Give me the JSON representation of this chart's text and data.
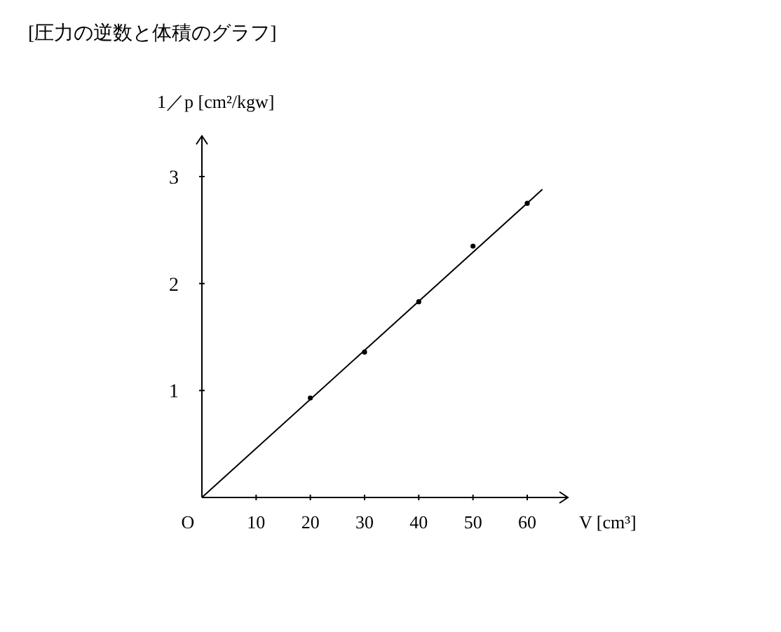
{
  "chart_data": {
    "type": "scatter",
    "title": "[圧力の逆数と体積のグラフ]",
    "xlabel": "V [cm³]",
    "ylabel": "1／p [cm²/kgw]",
    "xlim": [
      0,
      67.5
    ],
    "ylim": [
      0,
      3.38
    ],
    "xticks": [
      10,
      20,
      30,
      40,
      50,
      60
    ],
    "yticks": [
      1,
      2,
      3
    ],
    "annotations": [
      {
        "text": "O",
        "x": 0,
        "y": 0
      }
    ],
    "series": [
      {
        "color": "#000000",
        "marker": "circle",
        "x": [
          20,
          30,
          40,
          50,
          60
        ],
        "values": [
          0.93,
          1.36,
          1.83,
          2.35,
          2.75
        ]
      },
      {
        "type": "line",
        "color": "#000000",
        "marker": "none",
        "x": [
          0,
          62.8
        ],
        "values": [
          0,
          2.88
        ]
      }
    ]
  }
}
